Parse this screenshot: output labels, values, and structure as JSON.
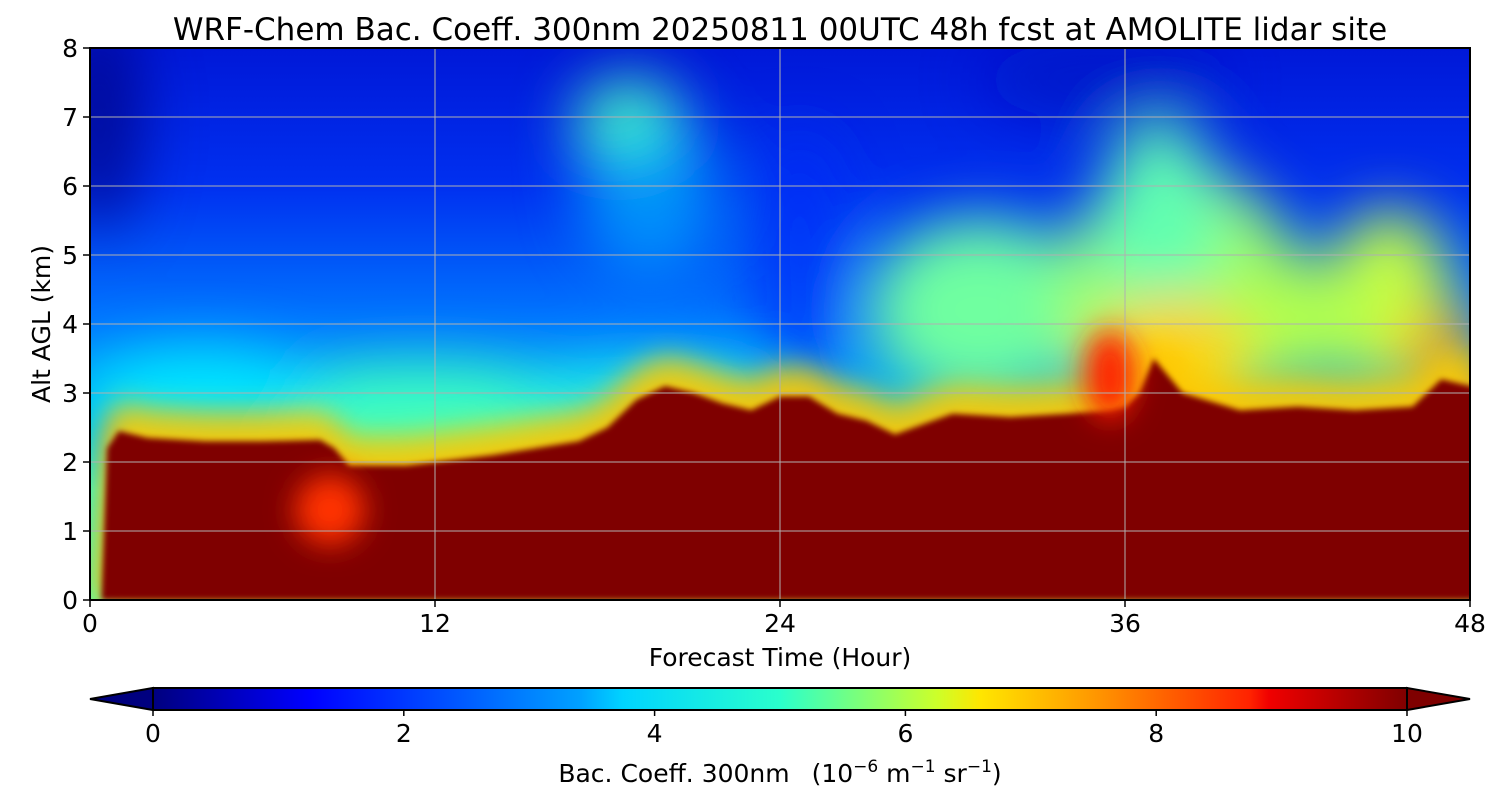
{
  "chart_data": {
    "type": "heatmap",
    "title": "WRF-Chem Bac. Coeff. 300nm  20250811 00UTC 48h fcst at AMOLITE lidar site",
    "xlabel": "Forecast Time (Hour)",
    "ylabel": "Alt AGL (km)",
    "xlim": [
      0,
      48
    ],
    "ylim": [
      0,
      8
    ],
    "xticks": [
      0,
      12,
      24,
      36,
      48
    ],
    "yticks": [
      0,
      1,
      2,
      3,
      4,
      5,
      6,
      7,
      8
    ],
    "grid": true,
    "colorbar": {
      "label_main": "Bac. Coeff. 300nm",
      "label_units_prefix": "(10",
      "label_units_exp1": "−6",
      "label_units_m": " m",
      "label_units_exp2": "−1",
      "label_units_sr": " sr",
      "label_units_exp3": "−1",
      "label_units_suffix": ")",
      "range": [
        0,
        10
      ],
      "ticks": [
        0,
        2,
        4,
        6,
        8,
        10
      ],
      "extend": "both",
      "colormap": "jet"
    },
    "aerosol_top_km": {
      "hours": [
        0.4,
        0.6,
        1,
        2,
        4,
        6,
        8,
        8.5,
        9,
        11,
        14,
        17,
        18,
        19,
        20,
        21,
        22,
        23,
        24,
        25,
        26,
        27,
        28,
        29,
        30,
        32,
        34,
        35.5,
        36,
        36.5,
        37,
        38,
        40,
        42,
        44,
        46,
        47,
        48
      ],
      "heights": [
        0,
        2.2,
        2.45,
        2.35,
        2.3,
        2.3,
        2.32,
        2.2,
        1.95,
        1.95,
        2.1,
        2.3,
        2.5,
        2.9,
        3.1,
        3.0,
        2.85,
        2.75,
        2.95,
        2.95,
        2.7,
        2.6,
        2.4,
        2.55,
        2.7,
        2.65,
        2.7,
        2.75,
        2.8,
        3.0,
        3.5,
        3.0,
        2.75,
        2.8,
        2.75,
        2.8,
        3.2,
        3.1
      ]
    }
  }
}
